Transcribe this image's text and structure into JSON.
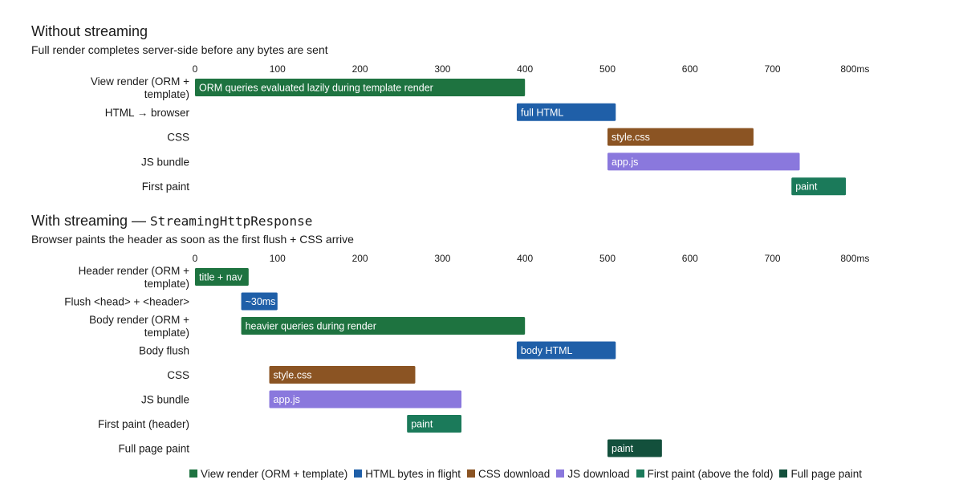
{
  "colors": {
    "view": "#1e7340",
    "html": "#1f5fa8",
    "css": "#8b5423",
    "js": "#8a78dd",
    "first": "#1b7a5a",
    "full": "#13503c"
  },
  "chart_data": [
    {
      "type": "bar",
      "subtype": "gantt",
      "title": "Without streaming",
      "subtitle": "Full render completes server-side before any bytes are sent",
      "title_mono": "",
      "x_ticks": [
        "0",
        "100",
        "200",
        "300",
        "400",
        "500",
        "600",
        "700",
        "800ms"
      ],
      "x_range": [
        0,
        800
      ],
      "rows": [
        {
          "label_lines": [
            "View render (ORM +",
            "template)"
          ],
          "start": 0,
          "end": 400,
          "text": "ORM queries evaluated lazily during template render",
          "category": "view"
        },
        {
          "label_lines": [
            "HTML → browser"
          ],
          "start": 390,
          "end": 510,
          "text": "full HTML",
          "category": "html"
        },
        {
          "label_lines": [
            "CSS"
          ],
          "start": 500,
          "end": 677,
          "text": "style.css",
          "category": "css"
        },
        {
          "label_lines": [
            "JS bundle"
          ],
          "start": 500,
          "end": 733,
          "text": "app.js",
          "category": "js"
        },
        {
          "label_lines": [
            "First paint"
          ],
          "start": 723,
          "end": 789,
          "text": "paint",
          "category": "first"
        }
      ]
    },
    {
      "type": "bar",
      "subtype": "gantt",
      "title": "With streaming — ",
      "title_mono": "StreamingHttpResponse",
      "subtitle": "Browser paints the header as soon as the first flush + CSS arrive",
      "x_ticks": [
        "0",
        "100",
        "200",
        "300",
        "400",
        "500",
        "600",
        "700",
        "800ms"
      ],
      "x_range": [
        0,
        800
      ],
      "rows": [
        {
          "label_lines": [
            "Header render (ORM +",
            "template)"
          ],
          "start": 0,
          "end": 65,
          "text": "title + nav",
          "category": "view"
        },
        {
          "label_lines": [
            "Flush <head> + <header>"
          ],
          "start": 56,
          "end": 100,
          "text": "~30ms",
          "category": "html"
        },
        {
          "label_lines": [
            "Body render (ORM +",
            "template)"
          ],
          "start": 56,
          "end": 400,
          "text": "heavier queries during render",
          "category": "view"
        },
        {
          "label_lines": [
            "Body flush"
          ],
          "start": 390,
          "end": 510,
          "text": "body HTML",
          "category": "html"
        },
        {
          "label_lines": [
            "CSS"
          ],
          "start": 90,
          "end": 267,
          "text": "style.css",
          "category": "css"
        },
        {
          "label_lines": [
            "JS bundle"
          ],
          "start": 90,
          "end": 323,
          "text": "app.js",
          "category": "js"
        },
        {
          "label_lines": [
            "First paint (header)"
          ],
          "start": 257,
          "end": 323,
          "text": "paint",
          "category": "first"
        },
        {
          "label_lines": [
            "Full page paint"
          ],
          "start": 500,
          "end": 566,
          "text": "paint",
          "category": "full"
        }
      ]
    }
  ],
  "legend": [
    {
      "label": "View render (ORM + template)",
      "category": "view"
    },
    {
      "label": "HTML bytes in flight",
      "category": "html"
    },
    {
      "label": "CSS download",
      "category": "css"
    },
    {
      "label": "JS download",
      "category": "js"
    },
    {
      "label": "First paint (above the fold)",
      "category": "first"
    },
    {
      "label": "Full page paint",
      "category": "full"
    }
  ]
}
